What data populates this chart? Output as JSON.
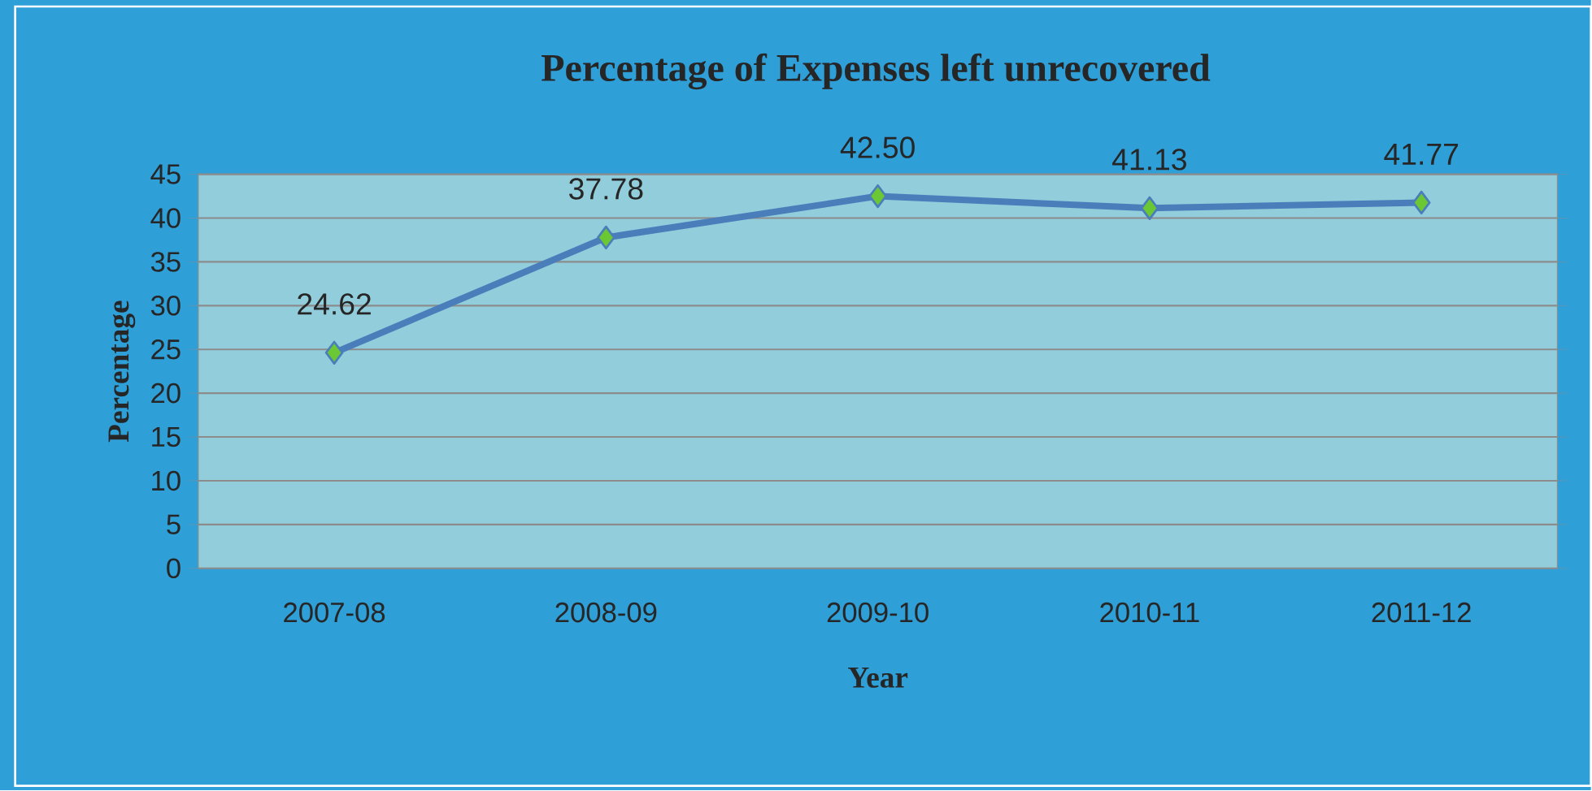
{
  "chart_data": {
    "type": "line",
    "title": "Percentage of Expenses left unrecovered",
    "xlabel": "Year",
    "ylabel": "Percentage",
    "categories": [
      "2007-08",
      "2008-09",
      "2009-10",
      "2010-11",
      "2011-12"
    ],
    "series": [
      {
        "color": "#4a7ebb",
        "values": [
          24.62,
          37.78,
          42.5,
          41.13,
          41.77
        ],
        "value_labels": [
          "24.62",
          "37.78",
          "42.50",
          "41.13",
          "41.77"
        ]
      }
    ],
    "ylim": [
      0,
      45
    ],
    "yticks": [
      0,
      5,
      10,
      15,
      20,
      25,
      30,
      35,
      40,
      45
    ],
    "grid": "y",
    "marker": "diamond",
    "line_style": "solid"
  }
}
